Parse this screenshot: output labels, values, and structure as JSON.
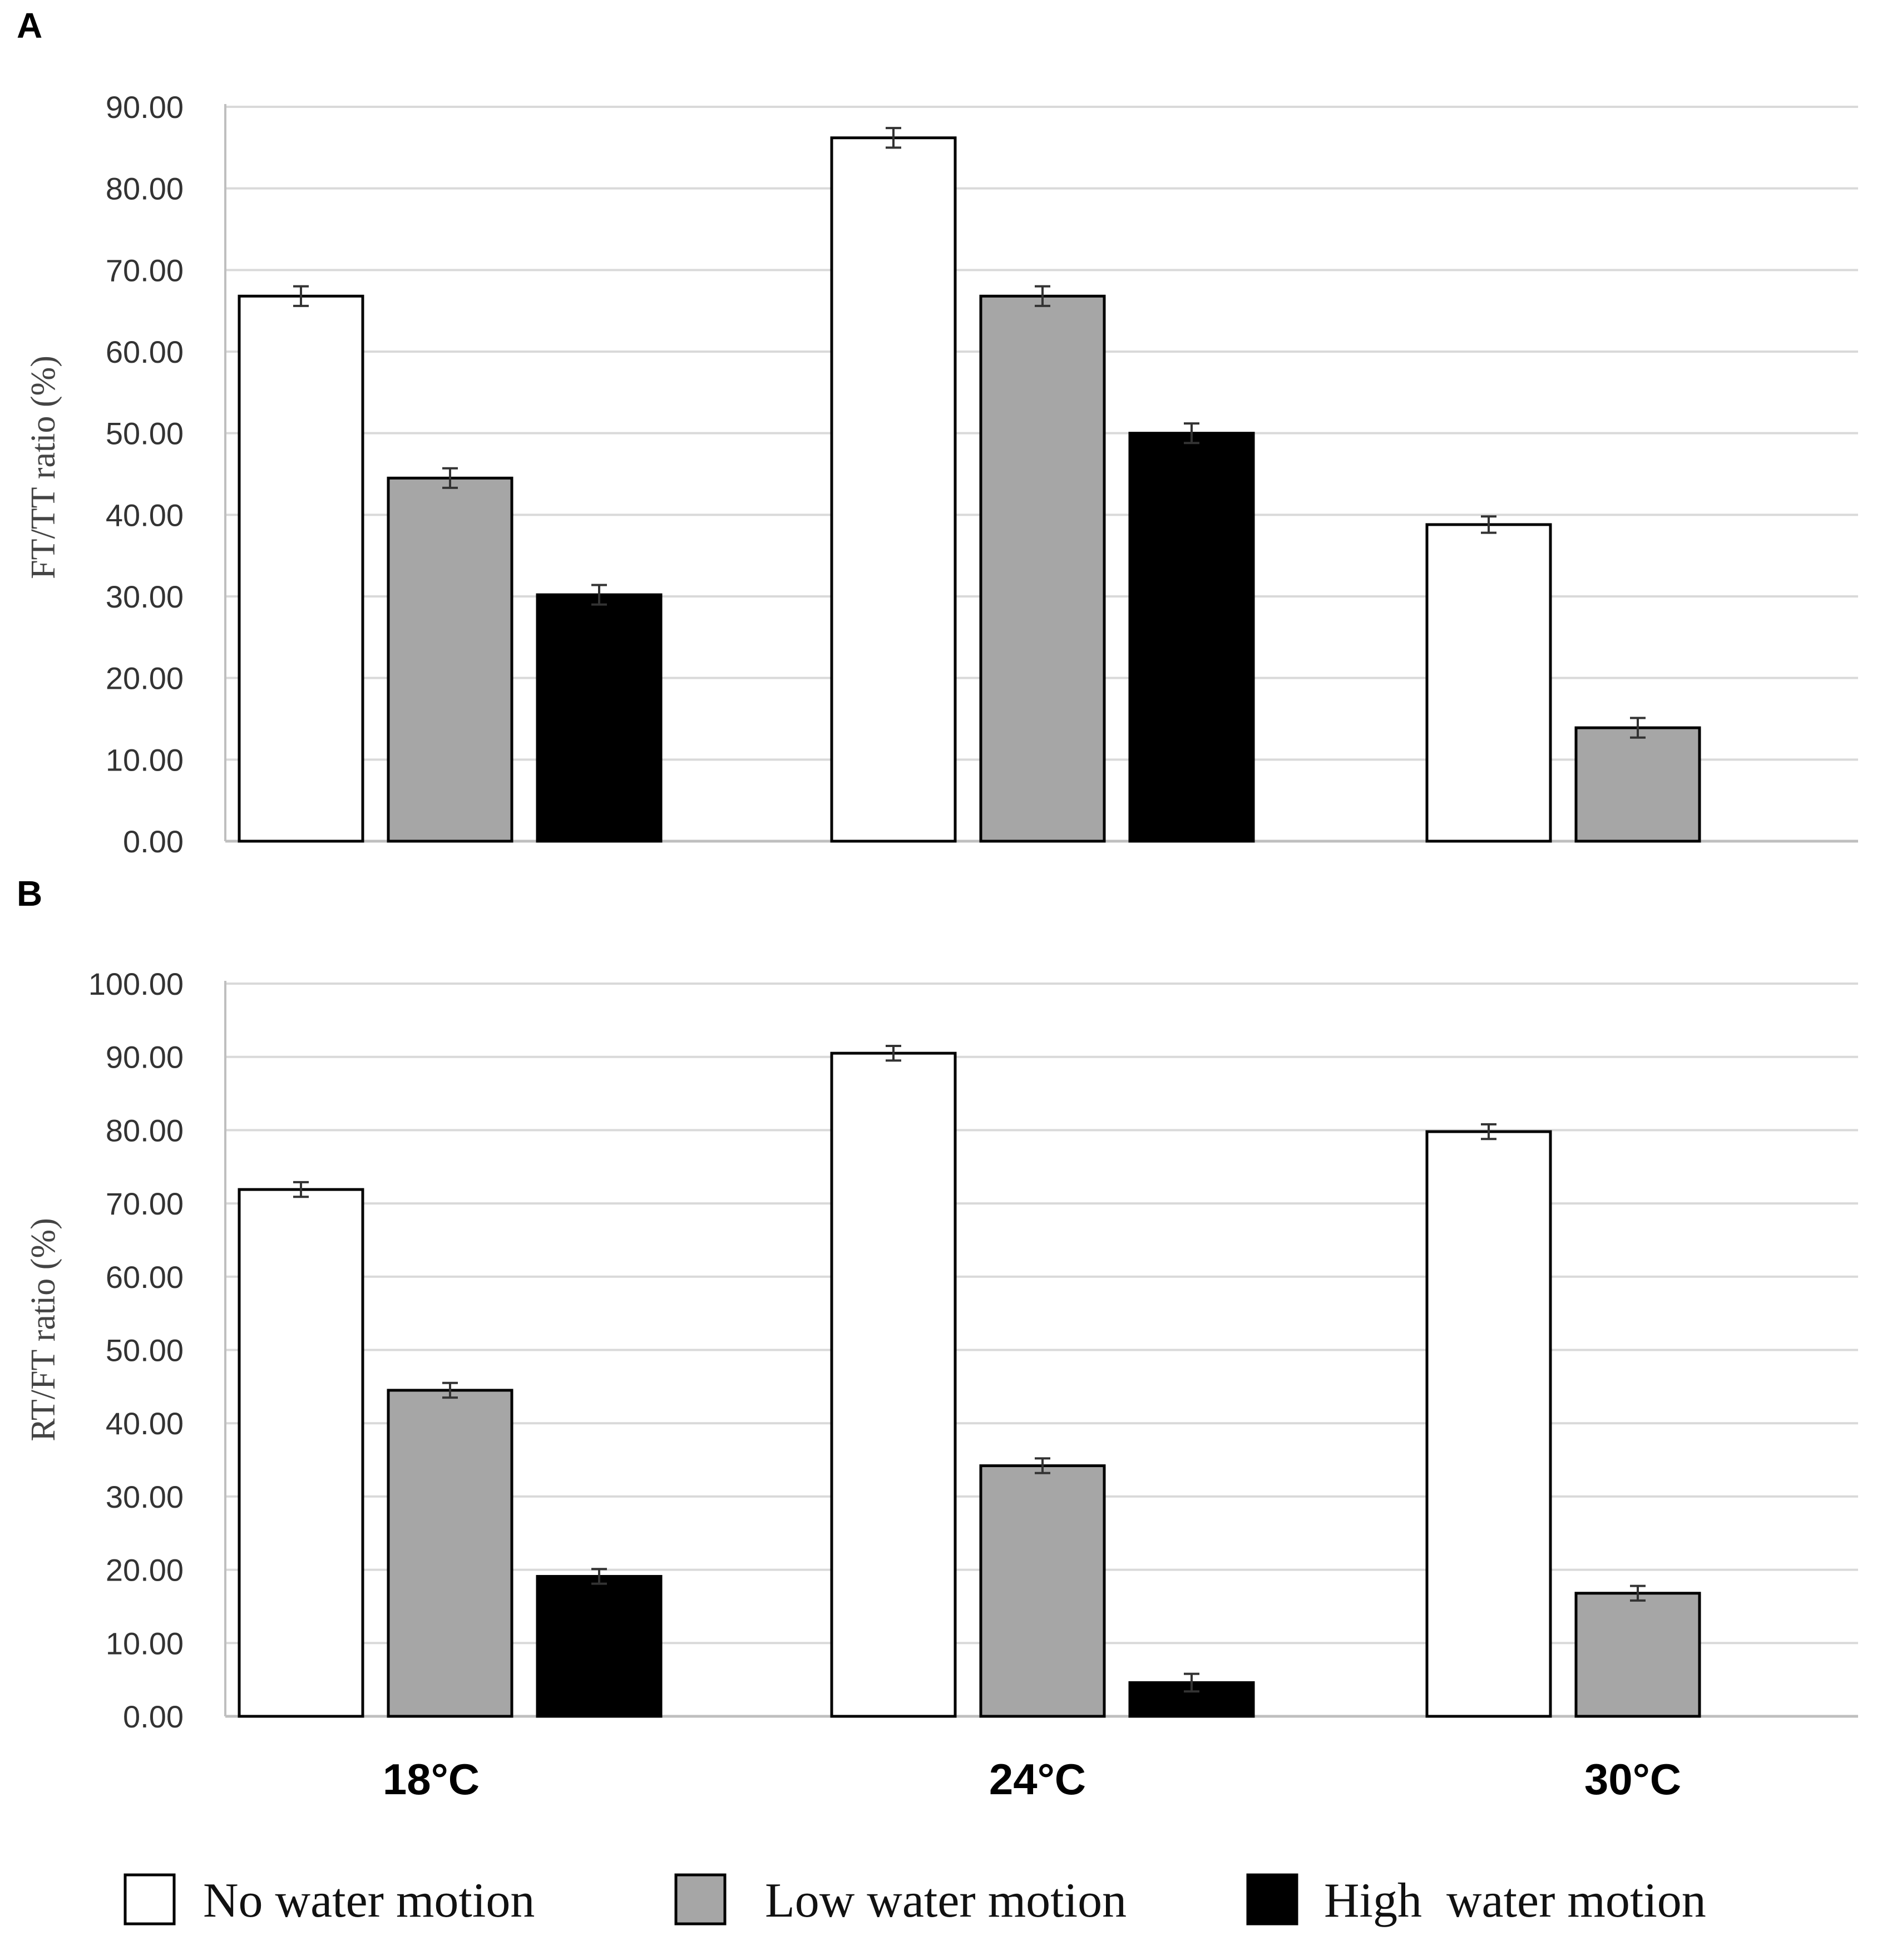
{
  "legend": {
    "items": [
      {
        "label": "No water motion",
        "color": "#ffffff"
      },
      {
        "label": "Low water motion",
        "color": "#a6a6a6"
      },
      {
        "label": "High  water motion",
        "color": "#000000"
      }
    ]
  },
  "chart_data": [
    {
      "panel": "A",
      "type": "bar",
      "categories": [
        "18°C",
        "24°C",
        "30°C"
      ],
      "ylabel": "FT/TT ratio (%)",
      "ylim": [
        0,
        90
      ],
      "yticks": [
        "0.00",
        "10.00",
        "20.00",
        "30.00",
        "40.00",
        "50.00",
        "60.00",
        "70.00",
        "80.00",
        "90.00"
      ],
      "grid": true,
      "series": [
        {
          "name": "No water motion",
          "color": "#ffffff",
          "values": [
            66.8,
            86.2,
            38.8
          ],
          "errors": [
            1.2,
            1.2,
            1.0
          ]
        },
        {
          "name": "Low water motion",
          "color": "#a6a6a6",
          "values": [
            44.5,
            66.8,
            13.9
          ],
          "errors": [
            1.2,
            1.2,
            1.2
          ]
        },
        {
          "name": "High  water motion",
          "color": "#000000",
          "values": [
            30.2,
            50.0,
            null
          ],
          "errors": [
            1.2,
            1.2,
            null
          ]
        }
      ]
    },
    {
      "panel": "B",
      "type": "bar",
      "categories": [
        "18°C",
        "24°C",
        "30°C"
      ],
      "ylabel": "RT/FT ratio (%)",
      "ylim": [
        0,
        100
      ],
      "yticks": [
        "0.00",
        "10.00",
        "20.00",
        "30.00",
        "40.00",
        "50.00",
        "60.00",
        "70.00",
        "80.00",
        "90.00",
        "100.00"
      ],
      "grid": true,
      "series": [
        {
          "name": "No water motion",
          "color": "#ffffff",
          "values": [
            71.9,
            90.5,
            79.8
          ],
          "errors": [
            1.0,
            1.0,
            1.0
          ]
        },
        {
          "name": "Low water motion",
          "color": "#a6a6a6",
          "values": [
            44.5,
            34.2,
            16.8
          ],
          "errors": [
            1.0,
            1.0,
            1.0
          ]
        },
        {
          "name": "High  water motion",
          "color": "#000000",
          "values": [
            19.1,
            4.6,
            null
          ],
          "errors": [
            1.0,
            1.2,
            null
          ]
        }
      ]
    }
  ]
}
